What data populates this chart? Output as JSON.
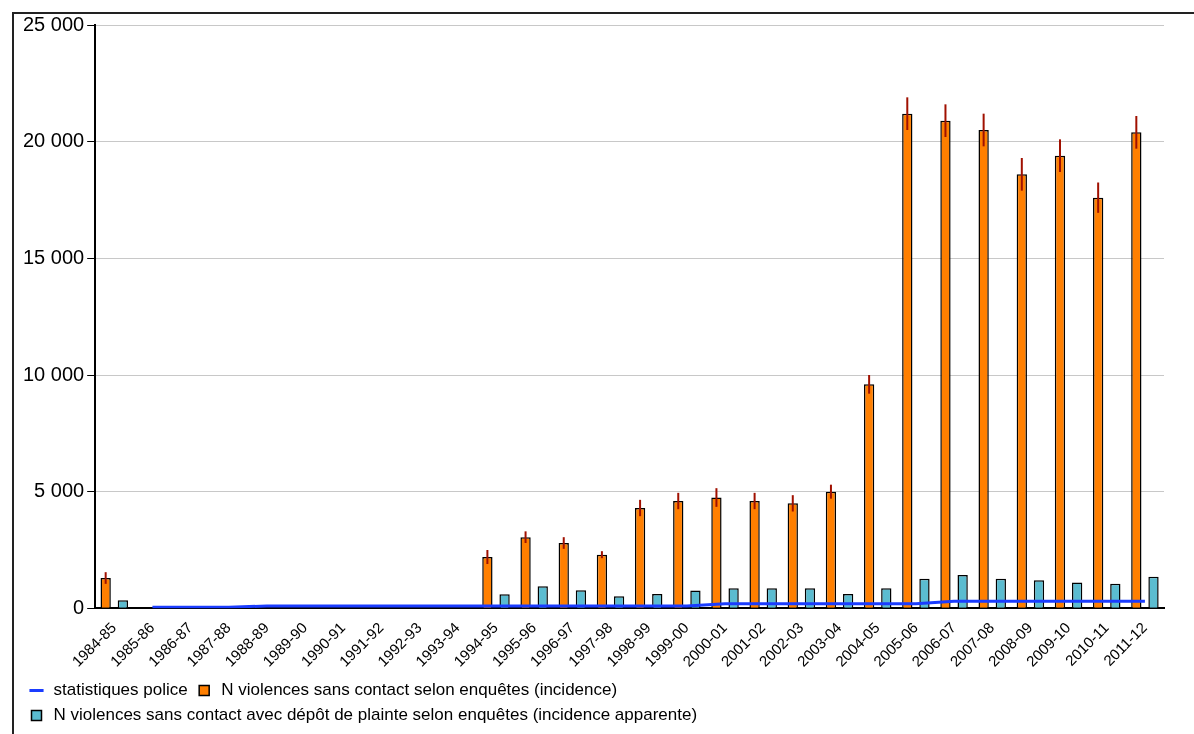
{
  "chart_data": {
    "type": "bar",
    "categories": [
      "1984-85",
      "1985-86",
      "1986-87",
      "1987-88",
      "1988-89",
      "1989-90",
      "1990-91",
      "1991-92",
      "1992-93",
      "1993-94",
      "1994-95",
      "1995-96",
      "1996-97",
      "1997-98",
      "1998-99",
      "1999-00",
      "2000-01",
      "2001-02",
      "2002-03",
      "2003-04",
      "2004-05",
      "2005-06",
      "2006-07",
      "2007-08",
      "2008-09",
      "2009-10",
      "2010-11",
      "2011-12"
    ],
    "series": [
      {
        "name": "N violences sans contact selon enquêtes (incidence)",
        "color": "#ff7f00",
        "values": [
          1300,
          null,
          null,
          null,
          null,
          null,
          null,
          null,
          null,
          null,
          2200,
          3050,
          2800,
          2300,
          4300,
          4600,
          4750,
          4600,
          4500,
          5000,
          9600,
          21200,
          20900,
          20500,
          18600,
          19400,
          17600,
          20400
        ],
        "errors": [
          250,
          null,
          null,
          null,
          null,
          null,
          null,
          null,
          null,
          null,
          300,
          250,
          250,
          150,
          350,
          350,
          400,
          350,
          350,
          300,
          400,
          700,
          700,
          700,
          700,
          700,
          650,
          700
        ]
      },
      {
        "name": "N violences sans contact avec dépôt de plainte selon enquêtes (incidence apparente)",
        "color": "#5bbcd0",
        "values": [
          350,
          null,
          null,
          null,
          null,
          null,
          null,
          null,
          null,
          null,
          600,
          950,
          780,
          520,
          620,
          760,
          860,
          860,
          860,
          620,
          860,
          1270,
          1430,
          1270,
          1200,
          1110,
          1050,
          1350
        ]
      },
      {
        "name": "statistiques police",
        "type": "line",
        "color": "#1a3cff",
        "values": [
          null,
          50,
          50,
          50,
          100,
          100,
          100,
          100,
          100,
          100,
          100,
          100,
          100,
          100,
          100,
          100,
          200,
          200,
          200,
          200,
          200,
          200,
          300,
          300,
          300,
          300,
          300,
          300
        ]
      }
    ],
    "ylim": [
      0,
      25000
    ],
    "yticks": [
      {
        "value": 0,
        "label": "0"
      },
      {
        "value": 5000,
        "label": "5 000"
      },
      {
        "value": 10000,
        "label": "10 000"
      },
      {
        "value": 15000,
        "label": "15 000"
      },
      {
        "value": 20000,
        "label": "20 000"
      },
      {
        "value": 25000,
        "label": "25 000"
      }
    ],
    "grid": "y",
    "legend": "bottom",
    "marker": "none"
  }
}
